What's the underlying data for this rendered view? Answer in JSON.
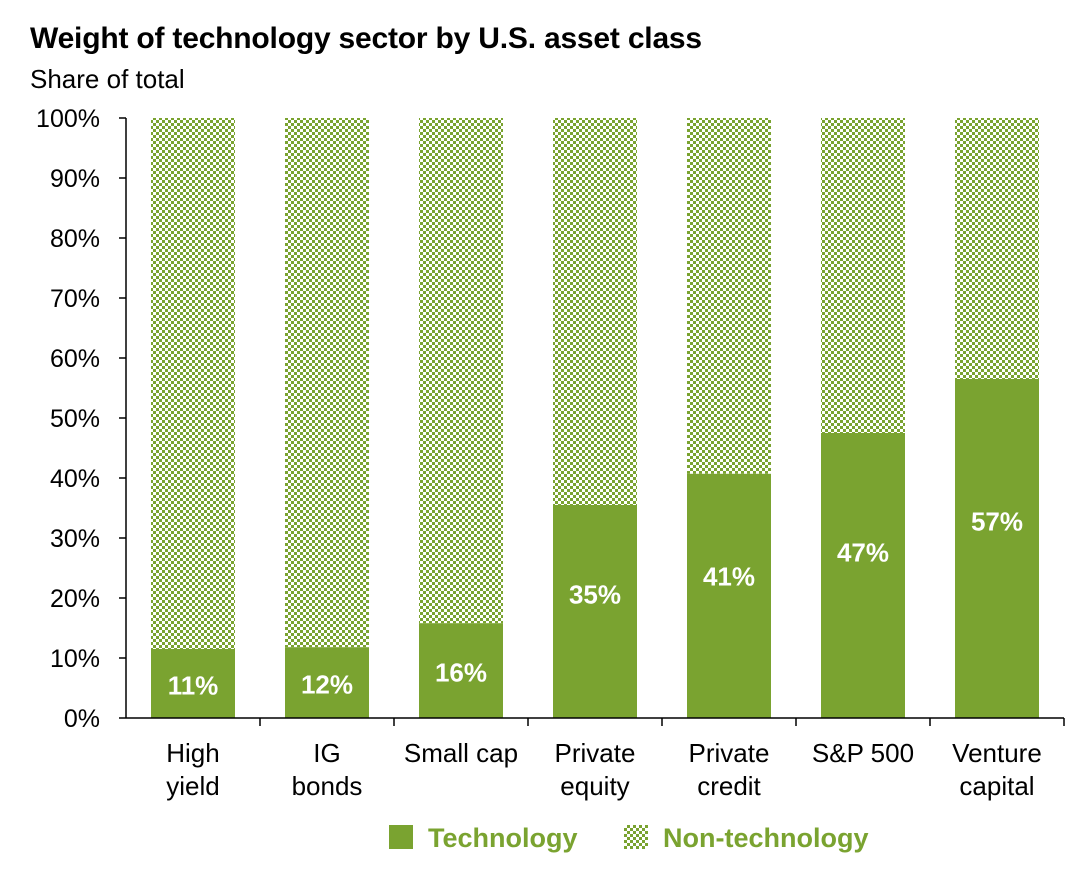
{
  "chart_data": {
    "type": "bar",
    "stacked": true,
    "title": "Weight of technology sector by U.S. asset class",
    "subtitle": "Share of total",
    "categories": [
      [
        "High",
        "yield"
      ],
      [
        "IG",
        "bonds"
      ],
      [
        "Small cap"
      ],
      [
        "Private",
        "equity"
      ],
      [
        "Private",
        "credit"
      ],
      [
        "S&P 500"
      ],
      [
        "Venture",
        "capital"
      ]
    ],
    "series": [
      {
        "name": "Technology",
        "color": "#7aa330",
        "pattern": "solid",
        "values": [
          11,
          12,
          16,
          35,
          41,
          47,
          57
        ],
        "value_labels": [
          "11%",
          "12%",
          "16%",
          "35%",
          "41%",
          "47%",
          "57%"
        ],
        "plotted_values": [
          11.5,
          11.8,
          15.8,
          35.5,
          40.7,
          47.5,
          56.5
        ]
      },
      {
        "name": "Non-technology",
        "color": "#7aa330",
        "pattern": "checkered",
        "values": [
          89,
          88,
          84,
          65,
          59,
          53,
          43
        ]
      }
    ],
    "yticks": [
      "0%",
      "10%",
      "20%",
      "30%",
      "40%",
      "50%",
      "60%",
      "70%",
      "80%",
      "90%",
      "100%"
    ],
    "ylim": [
      0,
      100
    ],
    "grid": false,
    "legend_position": "bottom"
  }
}
